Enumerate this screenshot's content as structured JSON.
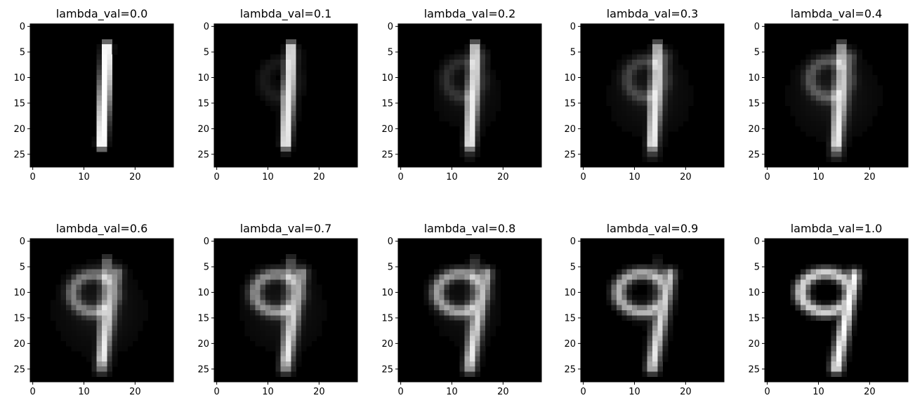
{
  "chart_data": {
    "type": "heatmap",
    "colormap": "gray",
    "image_size": [
      28,
      28
    ],
    "grid": false,
    "xlim": [
      -0.5,
      27.5
    ],
    "ylim": [
      27.5,
      -0.5
    ],
    "xticks": [
      0,
      10,
      20
    ],
    "yticks": [
      0,
      5,
      10,
      15,
      20,
      25
    ],
    "layout": {
      "rows": 2,
      "cols": 5
    },
    "panels": [
      {
        "title": "lambda_val=0.0",
        "lambda": 0.0
      },
      {
        "title": "lambda_val=0.1",
        "lambda": 0.1
      },
      {
        "title": "lambda_val=0.2",
        "lambda": 0.2
      },
      {
        "title": "lambda_val=0.3",
        "lambda": 0.3
      },
      {
        "title": "lambda_val=0.4",
        "lambda": 0.4
      },
      {
        "title": "lambda_val=0.6",
        "lambda": 0.6
      },
      {
        "title": "lambda_val=0.7",
        "lambda": 0.7
      },
      {
        "title": "lambda_val=0.8",
        "lambda": 0.8
      },
      {
        "title": "lambda_val=0.9",
        "lambda": 0.9
      },
      {
        "title": "lambda_val=1.0",
        "lambda": 1.0
      }
    ]
  }
}
